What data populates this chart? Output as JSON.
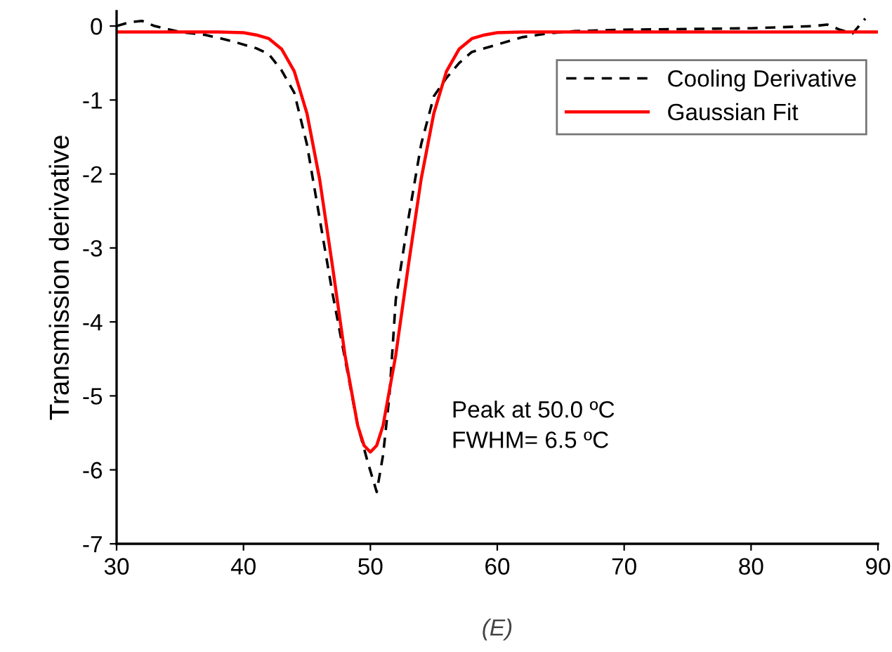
{
  "chart_data": {
    "type": "line",
    "ylabel": "Transmission derivative",
    "xlim": [
      30,
      90
    ],
    "xticks": [
      30,
      40,
      50,
      60,
      70,
      80,
      90
    ],
    "ylim": [
      -7,
      0.2
    ],
    "yticks": [
      -7,
      -6,
      -5,
      -4,
      -3,
      -2,
      -1,
      0
    ],
    "grid": false,
    "legend": "top right",
    "annotations": [
      "Peak at 50.0 ºC\nFWHM= 6.5 ºC",
      "(E)"
    ],
    "series": [
      {
        "name": "Cooling Derivative",
        "color": "#000000",
        "line_style": "dashed",
        "x": [
          30,
          31,
          32,
          33,
          35,
          37,
          39,
          41,
          42,
          43,
          44,
          45,
          46,
          47,
          48,
          49,
          49.8,
          50.5,
          51,
          51.5,
          52,
          53,
          54,
          55,
          56,
          57,
          58,
          60,
          62,
          64,
          66,
          70,
          75,
          80,
          85,
          86,
          87,
          88,
          89
        ],
        "values": [
          0.0,
          0.05,
          0.07,
          0.0,
          -0.08,
          -0.12,
          -0.2,
          -0.3,
          -0.38,
          -0.6,
          -0.9,
          -1.6,
          -2.6,
          -3.6,
          -4.5,
          -5.4,
          -5.9,
          -6.3,
          -5.8,
          -5.0,
          -3.7,
          -2.6,
          -1.6,
          -0.95,
          -0.7,
          -0.5,
          -0.35,
          -0.25,
          -0.15,
          -0.1,
          -0.07,
          -0.05,
          -0.04,
          -0.03,
          0.0,
          0.02,
          -0.05,
          -0.1,
          0.1
        ]
      },
      {
        "name": "Gaussian Fit",
        "color": "#ff0000",
        "line_style": "solid",
        "x": [
          30,
          35,
          38,
          40,
          41,
          42,
          43,
          44,
          45,
          46,
          47,
          48,
          49,
          49.5,
          50,
          50.5,
          51,
          52,
          53,
          54,
          55,
          56,
          57,
          58,
          59,
          60,
          62,
          65,
          70,
          80,
          90
        ],
        "values": [
          -0.08,
          -0.08,
          -0.08,
          -0.09,
          -0.12,
          -0.17,
          -0.31,
          -0.61,
          -1.18,
          -2.07,
          -3.23,
          -4.45,
          -5.4,
          -5.67,
          -5.76,
          -5.67,
          -5.4,
          -4.45,
          -3.23,
          -2.07,
          -1.18,
          -0.61,
          -0.31,
          -0.17,
          -0.12,
          -0.09,
          -0.08,
          -0.08,
          -0.08,
          -0.08,
          -0.08
        ]
      }
    ]
  }
}
